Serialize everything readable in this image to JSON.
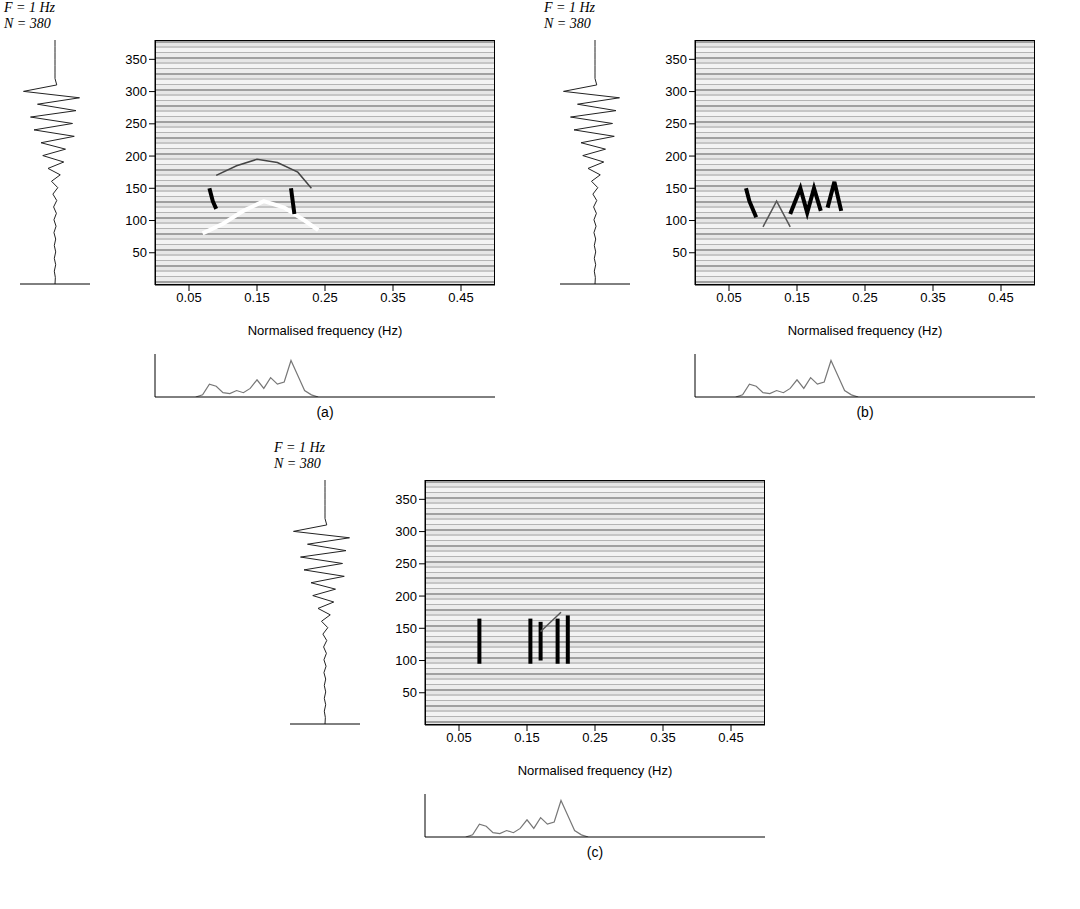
{
  "chart_data": [
    {
      "type": "line",
      "header": [
        "F = 1 Hz",
        "N = 380"
      ],
      "panel": "(a)",
      "xlabel": "Normalised frequency (Hz)",
      "xlim": [
        0,
        0.5
      ],
      "xticks": [
        0.05,
        0.15,
        0.25,
        0.35,
        0.45
      ],
      "ylim": [
        0,
        380
      ],
      "yticks": [
        50,
        100,
        150,
        200,
        250,
        300,
        350
      ],
      "series": [
        {
          "color": "#000000",
          "line_style": "thick",
          "x": [
            0.08,
            0.085,
            0.09
          ],
          "values": [
            150,
            130,
            118
          ]
        },
        {
          "color": "#ffffff",
          "line_style": "thick",
          "x": [
            0.07,
            0.1,
            0.13,
            0.16,
            0.19,
            0.22,
            0.24
          ],
          "values": [
            80,
            95,
            115,
            130,
            120,
            100,
            85
          ]
        },
        {
          "color": "#444444",
          "line_style": "thin",
          "x": [
            0.09,
            0.12,
            0.15,
            0.18,
            0.21,
            0.23
          ],
          "values": [
            170,
            185,
            195,
            190,
            175,
            150
          ]
        },
        {
          "color": "#000000",
          "line_style": "thick",
          "x": [
            0.2,
            0.205
          ],
          "values": [
            150,
            110
          ]
        }
      ],
      "signal": {
        "xlim": [
          -1,
          1
        ],
        "time": [
          0,
          10,
          20,
          30,
          40,
          50,
          60,
          70,
          80,
          90,
          100,
          110,
          120,
          130,
          140,
          150,
          160,
          170,
          180,
          190,
          200,
          210,
          220,
          230,
          240,
          250,
          260,
          270,
          280,
          290,
          300,
          310,
          320,
          330,
          340,
          350,
          360,
          370,
          380
        ],
        "values": [
          0,
          0,
          0,
          0,
          0,
          0,
          0,
          0.05,
          -0.9,
          0.7,
          -0.5,
          0.6,
          -0.7,
          0.5,
          -0.6,
          0.55,
          -0.4,
          0.3,
          -0.35,
          0.25,
          -0.2,
          0.15,
          -0.1,
          0.08,
          -0.06,
          0.05,
          -0.04,
          0.04,
          -0.03,
          0.03,
          -0.03,
          0.02,
          -0.02,
          0.02,
          -0.02,
          0.02,
          -0.02,
          0.01,
          0
        ]
      },
      "spectrum": {
        "ylim": [
          0,
          1
        ],
        "x": [
          0.06,
          0.07,
          0.08,
          0.09,
          0.1,
          0.11,
          0.12,
          0.13,
          0.14,
          0.15,
          0.16,
          0.17,
          0.18,
          0.19,
          0.2,
          0.21,
          0.22,
          0.23,
          0.24
        ],
        "values": [
          0,
          0.05,
          0.3,
          0.25,
          0.1,
          0.08,
          0.15,
          0.1,
          0.2,
          0.4,
          0.2,
          0.45,
          0.3,
          0.35,
          0.85,
          0.5,
          0.15,
          0.05,
          0
        ]
      }
    },
    {
      "type": "line",
      "header": [
        "F = 1 Hz",
        "N = 380"
      ],
      "panel": "(b)",
      "xlabel": "Normalised frequency (Hz)",
      "xlim": [
        0,
        0.5
      ],
      "xticks": [
        0.05,
        0.15,
        0.25,
        0.35,
        0.45
      ],
      "ylim": [
        0,
        380
      ],
      "yticks": [
        50,
        100,
        150,
        200,
        250,
        300,
        350
      ],
      "series": [
        {
          "color": "#000000",
          "line_style": "thick",
          "x": [
            0.075,
            0.08,
            0.09
          ],
          "values": [
            150,
            130,
            105
          ]
        },
        {
          "color": "#000000",
          "line_style": "thick",
          "x": [
            0.14,
            0.155,
            0.165,
            0.175,
            0.185
          ],
          "values": [
            110,
            150,
            112,
            150,
            115
          ]
        },
        {
          "color": "#000000",
          "line_style": "thick",
          "x": [
            0.195,
            0.205,
            0.215
          ],
          "values": [
            120,
            160,
            115
          ]
        },
        {
          "color": "#555555",
          "line_style": "thin",
          "x": [
            0.1,
            0.12,
            0.14
          ],
          "values": [
            90,
            130,
            90
          ]
        }
      ],
      "signal": {
        "xlim": [
          -1,
          1
        ],
        "time": [
          0,
          10,
          20,
          30,
          40,
          50,
          60,
          70,
          80,
          90,
          100,
          110,
          120,
          130,
          140,
          150,
          160,
          170,
          180,
          190,
          200,
          210,
          220,
          230,
          240,
          250,
          260,
          270,
          280,
          290,
          300,
          310,
          320,
          330,
          340,
          350,
          360,
          370,
          380
        ],
        "values": [
          0,
          0,
          0,
          0,
          0,
          0,
          0,
          0.05,
          -0.9,
          0.7,
          -0.5,
          0.6,
          -0.7,
          0.5,
          -0.6,
          0.55,
          -0.4,
          0.3,
          -0.35,
          0.25,
          -0.2,
          0.15,
          -0.1,
          0.08,
          -0.06,
          0.05,
          -0.04,
          0.04,
          -0.03,
          0.03,
          -0.03,
          0.02,
          -0.02,
          0.02,
          -0.02,
          0.02,
          -0.02,
          0.01,
          0
        ]
      },
      "spectrum": {
        "ylim": [
          0,
          1
        ],
        "x": [
          0.06,
          0.07,
          0.08,
          0.09,
          0.1,
          0.11,
          0.12,
          0.13,
          0.14,
          0.15,
          0.16,
          0.17,
          0.18,
          0.19,
          0.2,
          0.21,
          0.22,
          0.23,
          0.24
        ],
        "values": [
          0,
          0.05,
          0.3,
          0.25,
          0.1,
          0.08,
          0.15,
          0.1,
          0.2,
          0.4,
          0.2,
          0.45,
          0.3,
          0.35,
          0.85,
          0.5,
          0.15,
          0.05,
          0
        ]
      }
    },
    {
      "type": "line",
      "header": [
        "F = 1 Hz",
        "N = 380"
      ],
      "panel": "(c)",
      "xlabel": "Normalised frequency (Hz)",
      "xlim": [
        0,
        0.5
      ],
      "xticks": [
        0.05,
        0.15,
        0.25,
        0.35,
        0.45
      ],
      "ylim": [
        0,
        380
      ],
      "yticks": [
        50,
        100,
        150,
        200,
        250,
        300,
        350
      ],
      "series": [
        {
          "color": "#000000",
          "line_style": "thick",
          "x": [
            0.08,
            0.08
          ],
          "values": [
            95,
            165
          ]
        },
        {
          "color": "#000000",
          "line_style": "thick",
          "x": [
            0.155,
            0.155
          ],
          "values": [
            95,
            165
          ]
        },
        {
          "color": "#000000",
          "line_style": "thick",
          "x": [
            0.17,
            0.17
          ],
          "values": [
            100,
            160
          ]
        },
        {
          "color": "#000000",
          "line_style": "thick",
          "x": [
            0.195,
            0.195
          ],
          "values": [
            95,
            165
          ]
        },
        {
          "color": "#000000",
          "line_style": "thick",
          "x": [
            0.21,
            0.21
          ],
          "values": [
            95,
            170
          ]
        },
        {
          "color": "#555555",
          "line_style": "thin",
          "x": [
            0.17,
            0.2
          ],
          "values": [
            145,
            175
          ]
        }
      ],
      "signal": {
        "xlim": [
          -1,
          1
        ],
        "time": [
          0,
          10,
          20,
          30,
          40,
          50,
          60,
          70,
          80,
          90,
          100,
          110,
          120,
          130,
          140,
          150,
          160,
          170,
          180,
          190,
          200,
          210,
          220,
          230,
          240,
          250,
          260,
          270,
          280,
          290,
          300,
          310,
          320,
          330,
          340,
          350,
          360,
          370,
          380
        ],
        "values": [
          0,
          0,
          0,
          0,
          0,
          0,
          0,
          0.05,
          -0.9,
          0.7,
          -0.5,
          0.6,
          -0.7,
          0.5,
          -0.6,
          0.55,
          -0.4,
          0.3,
          -0.35,
          0.25,
          -0.2,
          0.15,
          -0.1,
          0.08,
          -0.06,
          0.05,
          -0.04,
          0.04,
          -0.03,
          0.03,
          -0.03,
          0.02,
          -0.02,
          0.02,
          -0.02,
          0.02,
          -0.02,
          0.01,
          0
        ]
      },
      "spectrum": {
        "ylim": [
          0,
          1
        ],
        "x": [
          0.06,
          0.07,
          0.08,
          0.09,
          0.1,
          0.11,
          0.12,
          0.13,
          0.14,
          0.15,
          0.16,
          0.17,
          0.18,
          0.19,
          0.2,
          0.21,
          0.22,
          0.23,
          0.24
        ],
        "values": [
          0,
          0.05,
          0.3,
          0.25,
          0.1,
          0.08,
          0.15,
          0.1,
          0.2,
          0.4,
          0.2,
          0.45,
          0.3,
          0.35,
          0.85,
          0.5,
          0.15,
          0.05,
          0
        ]
      }
    }
  ]
}
